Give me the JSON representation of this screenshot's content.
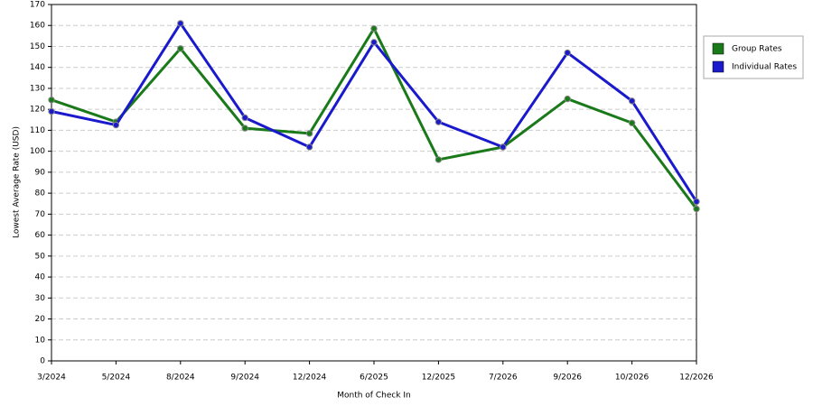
{
  "chart_data": {
    "type": "line",
    "x_label": "Month of Check In",
    "y_label": "Lowest Average Rate (USD)",
    "categories": [
      "3/2024",
      "5/2024",
      "8/2024",
      "9/2024",
      "12/2024",
      "6/2025",
      "12/2025",
      "7/2026",
      "9/2026",
      "10/2026",
      "12/2026"
    ],
    "series": [
      {
        "name": "Group Rates",
        "color": "#1a7a1a",
        "values": [
          124.5,
          114,
          149,
          111,
          108.5,
          158.5,
          96,
          102,
          125,
          113.5,
          72.5
        ]
      },
      {
        "name": "Individual Rates",
        "color": "#1a1acc",
        "values": [
          119,
          112.5,
          161,
          116,
          102,
          152,
          114,
          102,
          147,
          124,
          76
        ]
      }
    ],
    "ylim": [
      0,
      170
    ],
    "yticks": [
      0,
      10,
      20,
      30,
      40,
      50,
      60,
      70,
      80,
      90,
      100,
      110,
      120,
      130,
      140,
      150,
      160,
      170
    ],
    "grid": true,
    "legend": "right"
  }
}
